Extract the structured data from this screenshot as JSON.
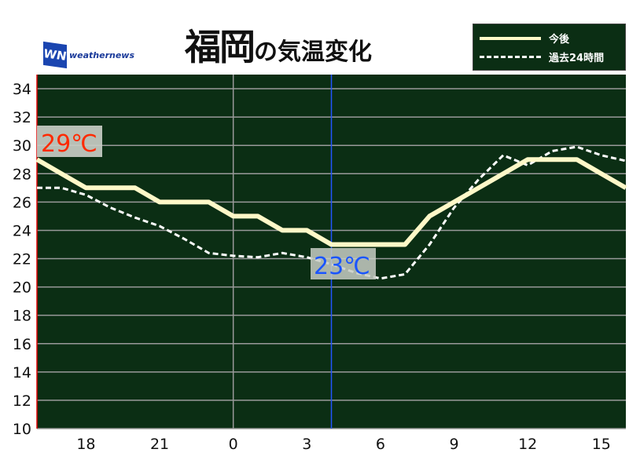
{
  "header": {
    "title_main": "福岡",
    "title_sub": "の気温変化",
    "logo_mark": "WN",
    "logo_text": "weathernews"
  },
  "legend": {
    "forecast_label": "今後",
    "past_label": "過去24時間"
  },
  "colors": {
    "background": "#0b2e14",
    "forecast": "#fff8c8",
    "past": "#ffffff",
    "now_line": "#2255ff",
    "max_label": "#ff2a00",
    "min_label": "#1a55ff"
  },
  "annotations": {
    "max": "29℃",
    "min": "23℃"
  },
  "chart_data": {
    "type": "line",
    "x_hours": [
      16,
      17,
      18,
      19,
      20,
      21,
      22,
      23,
      0,
      1,
      2,
      3,
      4,
      5,
      6,
      7,
      8,
      9,
      10,
      11,
      12,
      13,
      14,
      15,
      16
    ],
    "x_ticks": [
      "18",
      "21",
      "0",
      "3",
      "6",
      "9",
      "12",
      "15"
    ],
    "x_tick_hours": [
      18,
      21,
      24,
      27,
      30,
      33,
      36,
      39
    ],
    "ylim": [
      10,
      35
    ],
    "y_ticks": [
      10,
      12,
      14,
      16,
      18,
      20,
      22,
      24,
      26,
      28,
      30,
      32,
      34
    ],
    "grid": "horizontal",
    "now_hour": 28,
    "midnight_hour": 24,
    "legend_position": "top-right",
    "series": [
      {
        "name": "今後",
        "style": "solid",
        "values": [
          29,
          28,
          27,
          27,
          27,
          26,
          26,
          26,
          25,
          25,
          24,
          24,
          23,
          23,
          23,
          23,
          25,
          26,
          27,
          28,
          29,
          29,
          29,
          28,
          27
        ]
      },
      {
        "name": "過去24時間",
        "style": "dashed",
        "values": [
          27,
          27,
          26.5,
          25.6,
          24.9,
          24.3,
          23.4,
          22.4,
          22.2,
          22.1,
          22.4,
          22.1,
          21.6,
          21.0,
          20.6,
          20.9,
          23.0,
          25.6,
          27.6,
          29.3,
          28.6,
          29.6,
          29.9,
          29.3,
          28.9
        ]
      }
    ]
  }
}
